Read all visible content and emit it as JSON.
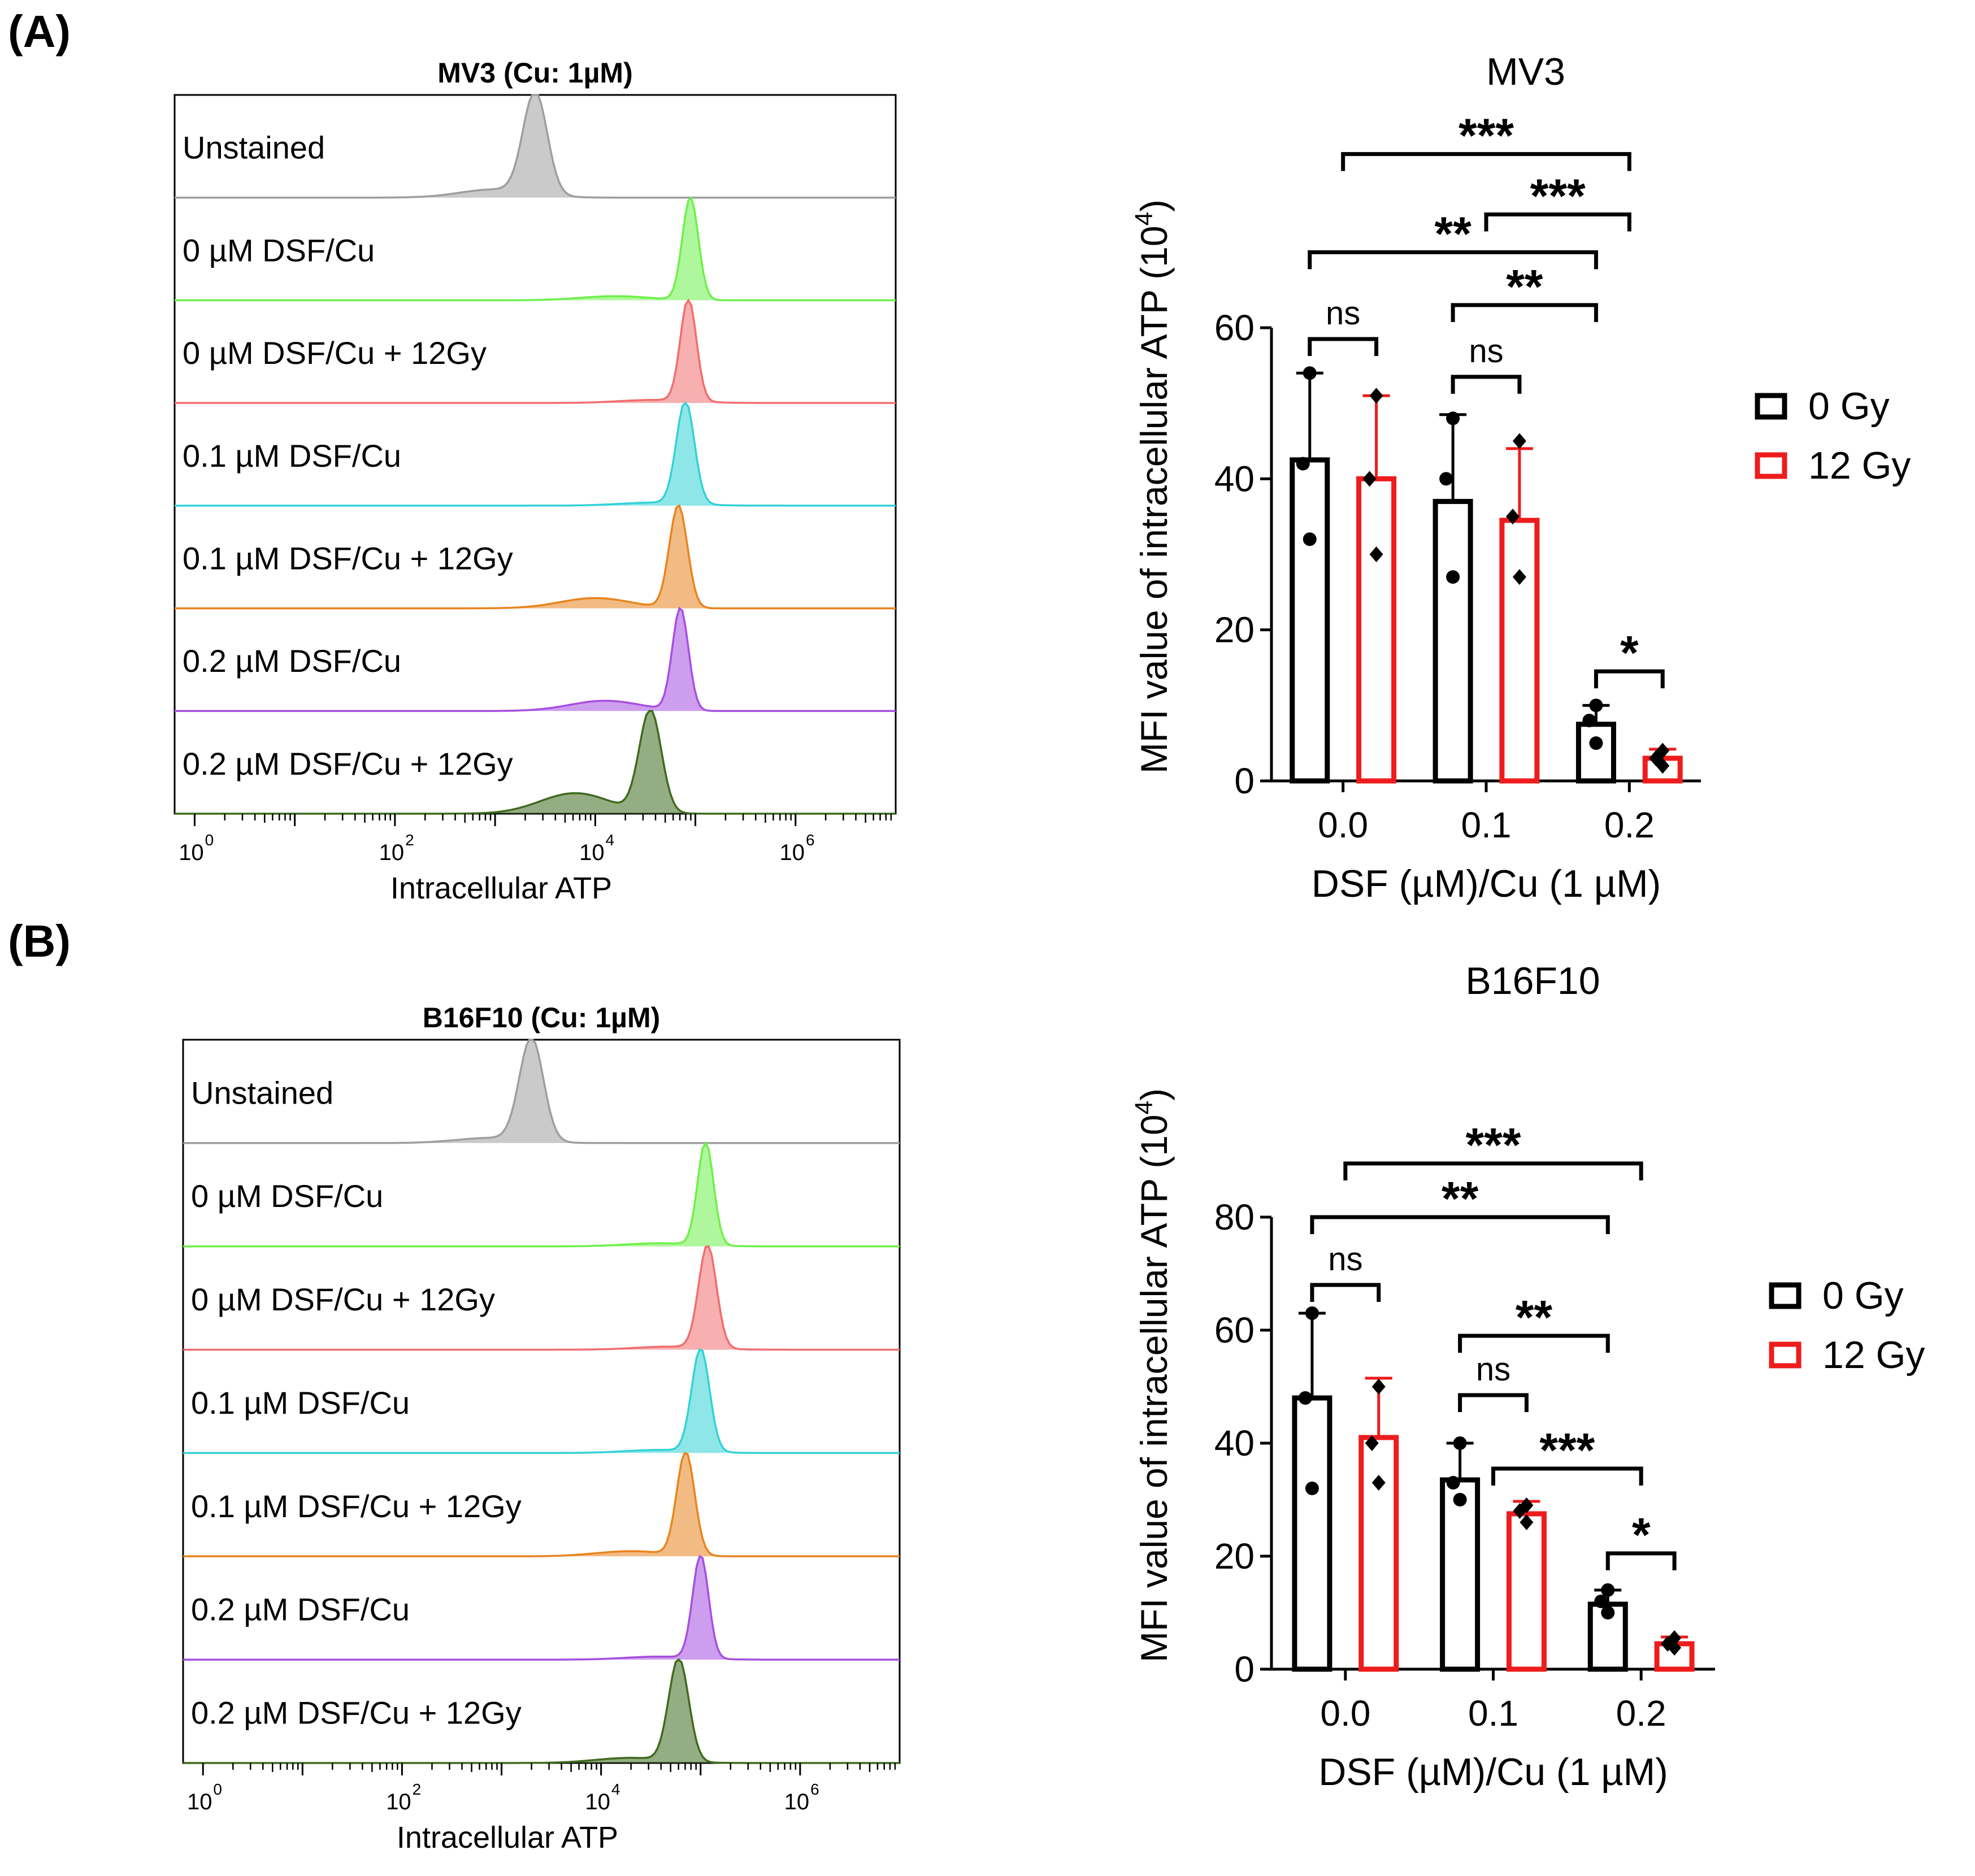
{
  "colors": {
    "unstained": "#9e9e9e",
    "dsf0": "#6ef04a",
    "dsf0_12gy": "#f06e6e",
    "dsf01": "#33d2d6",
    "dsf01_12gy": "#e8841e",
    "dsf02": "#a64fe0",
    "dsf02_12gy": "#3e6a1e",
    "bar_0gy": "#000000",
    "bar_12gy": "#ee1c1c"
  },
  "panels": [
    {
      "letter": "(A)",
      "histogram": {
        "title": "MV3 (Cu: 1µM)",
        "xlabel": "Intracellular ATP",
        "tick_base": "10",
        "tick_exponents": [
          "0",
          "2",
          "4",
          "6"
        ],
        "rows": [
          {
            "label": "Unstained",
            "color_key": "unstained",
            "peak_log": 3.4,
            "width": 0.12,
            "shoulder_log": 3.0,
            "shoulder_h": 0.08
          },
          {
            "label": "0 µM DSF/Cu",
            "color_key": "dsf0",
            "peak_log": 4.95,
            "width": 0.08,
            "shoulder_log": 4.2,
            "shoulder_h": 0.04
          },
          {
            "label": "0 µM DSF/Cu + 12Gy",
            "color_key": "dsf0_12gy",
            "peak_log": 4.93,
            "width": 0.08,
            "shoulder_log": 4.6,
            "shoulder_h": 0.03
          },
          {
            "label": "0.1 µM DSF/Cu",
            "color_key": "dsf01",
            "peak_log": 4.9,
            "width": 0.09,
            "shoulder_log": 4.6,
            "shoulder_h": 0.03
          },
          {
            "label": "0.1 µM DSF/Cu + 12Gy",
            "color_key": "dsf01_12gy",
            "peak_log": 4.83,
            "width": 0.09,
            "shoulder_log": 4.0,
            "shoulder_h": 0.1
          },
          {
            "label": "0.2 µM DSF/Cu",
            "color_key": "dsf02",
            "peak_log": 4.85,
            "width": 0.08,
            "shoulder_log": 4.1,
            "shoulder_h": 0.1
          },
          {
            "label": "0.2 µM DSF/Cu + 12Gy",
            "color_key": "dsf02_12gy",
            "peak_log": 4.55,
            "width": 0.11,
            "shoulder_log": 3.8,
            "shoulder_h": 0.2
          }
        ]
      },
      "bar_chart": {
        "type": "bar",
        "title": "MV3",
        "ylabel_main": "MFI value of intracellular ATP (10",
        "ylabel_exp": "4",
        "ylabel_close": ")",
        "xlabel": "DSF (µM)/Cu (1 µM)",
        "ylim": [
          0,
          60
        ],
        "yticks": [
          "0",
          "20",
          "40",
          "60"
        ],
        "categories": [
          "0.0",
          "0.1",
          "0.2"
        ],
        "series": [
          {
            "name": "0 Gy",
            "color_key": "bar_0gy",
            "values": [
              42.5,
              37,
              7.5
            ],
            "errors": [
              11.5,
              11.5,
              2.5
            ],
            "points": [
              [
                54,
                42,
                32
              ],
              [
                48,
                40,
                27
              ],
              [
                10,
                8,
                5
              ]
            ]
          },
          {
            "name": "12 Gy",
            "color_key": "bar_12gy",
            "values": [
              40,
              34.5,
              3
            ],
            "errors": [
              11,
              9.5,
              1.2
            ],
            "points": [
              [
                51,
                40,
                30
              ],
              [
                45,
                35,
                27
              ],
              [
                4,
                3,
                2
              ]
            ]
          }
        ],
        "legend": [
          {
            "label": "0 Gy",
            "color_key": "bar_0gy"
          },
          {
            "label": "12 Gy",
            "color_key": "bar_12gy"
          }
        ],
        "annotations": [
          {
            "label": "***",
            "x1": 0.5,
            "x2": 4.5,
            "y": 83
          },
          {
            "label": "***",
            "x1": 2.5,
            "x2": 4.5,
            "y": 75
          },
          {
            "label": "**",
            "x1": 0,
            "x2": 4,
            "y": 70
          },
          {
            "label": "**",
            "x1": 2,
            "x2": 4,
            "y": 63
          },
          {
            "label": "ns",
            "x1": 0,
            "x2": 1,
            "y": 58.5
          },
          {
            "label": "ns",
            "x1": 2,
            "x2": 3,
            "y": 53.5
          },
          {
            "label": "*",
            "x1": 4,
            "x2": 5,
            "y": 14.5
          }
        ]
      }
    },
    {
      "letter": "(B)",
      "histogram": {
        "title": "B16F10 (Cu: 1µM)",
        "xlabel": "Intracellular ATP",
        "tick_base": "10",
        "tick_exponents": [
          "0",
          "2",
          "4",
          "6"
        ],
        "rows": [
          {
            "label": "Unstained",
            "color_key": "unstained",
            "peak_log": 3.3,
            "width": 0.12,
            "shoulder_log": 2.9,
            "shoulder_h": 0.05
          },
          {
            "label": "0 µM DSF/Cu",
            "color_key": "dsf0",
            "peak_log": 5.05,
            "width": 0.08,
            "shoulder_log": 4.6,
            "shoulder_h": 0.03
          },
          {
            "label": "0 µM DSF/Cu + 12Gy",
            "color_key": "dsf0_12gy",
            "peak_log": 5.07,
            "width": 0.09,
            "shoulder_log": 4.7,
            "shoulder_h": 0.03
          },
          {
            "label": "0.1 µM DSF/Cu",
            "color_key": "dsf01",
            "peak_log": 5.0,
            "width": 0.09,
            "shoulder_log": 4.6,
            "shoulder_h": 0.03
          },
          {
            "label": "0.1 µM DSF/Cu + 12Gy",
            "color_key": "dsf01_12gy",
            "peak_log": 4.85,
            "width": 0.09,
            "shoulder_log": 4.3,
            "shoulder_h": 0.05
          },
          {
            "label": "0.2 µM DSF/Cu",
            "color_key": "dsf02",
            "peak_log": 5.0,
            "width": 0.08,
            "shoulder_log": 4.6,
            "shoulder_h": 0.03
          },
          {
            "label": "0.2 µM DSF/Cu + 12Gy",
            "color_key": "dsf02_12gy",
            "peak_log": 4.78,
            "width": 0.1,
            "shoulder_log": 4.3,
            "shoulder_h": 0.05
          }
        ]
      },
      "bar_chart": {
        "type": "bar",
        "title": "B16F10",
        "ylabel_main": "MFI value of intracellular ATP (10",
        "ylabel_exp": "4",
        "ylabel_close": ")",
        "xlabel": "DSF (µM)/Cu (1 µM)",
        "ylim": [
          0,
          80
        ],
        "yticks": [
          "0",
          "20",
          "40",
          "60",
          "80"
        ],
        "categories": [
          "0.0",
          "0.1",
          "0.2"
        ],
        "series": [
          {
            "name": "0 Gy",
            "color_key": "bar_0gy",
            "values": [
              48,
              33.5,
              11.5
            ],
            "errors": [
              15,
              6.5,
              2.5
            ],
            "points": [
              [
                63,
                48,
                32
              ],
              [
                40,
                33,
                30
              ],
              [
                14,
                12,
                10
              ]
            ]
          },
          {
            "name": "12 Gy",
            "color_key": "bar_12gy",
            "values": [
              41,
              27.5,
              4.5
            ],
            "errors": [
              10.5,
              2.2,
              1.2
            ],
            "points": [
              [
                50,
                40,
                33
              ],
              [
                29,
                28,
                26
              ],
              [
                5.5,
                4.5,
                3.8
              ]
            ]
          }
        ],
        "legend": [
          {
            "label": "0 Gy",
            "color_key": "bar_0gy"
          },
          {
            "label": "12 Gy",
            "color_key": "bar_12gy"
          }
        ],
        "annotations": [
          {
            "label": "***",
            "x1": 0.5,
            "x2": 4.5,
            "y": 89.5
          },
          {
            "label": "**",
            "x1": 0,
            "x2": 4,
            "y": 80
          },
          {
            "label": "ns",
            "x1": 0,
            "x2": 1,
            "y": 68
          },
          {
            "label": "**",
            "x1": 2,
            "x2": 4,
            "y": 59
          },
          {
            "label": "ns",
            "x1": 2,
            "x2": 3,
            "y": 48.5
          },
          {
            "label": "***",
            "x1": 2.5,
            "x2": 4.5,
            "y": 35.5
          },
          {
            "label": "*",
            "x1": 4,
            "x2": 5,
            "y": 20.5
          }
        ]
      }
    }
  ]
}
